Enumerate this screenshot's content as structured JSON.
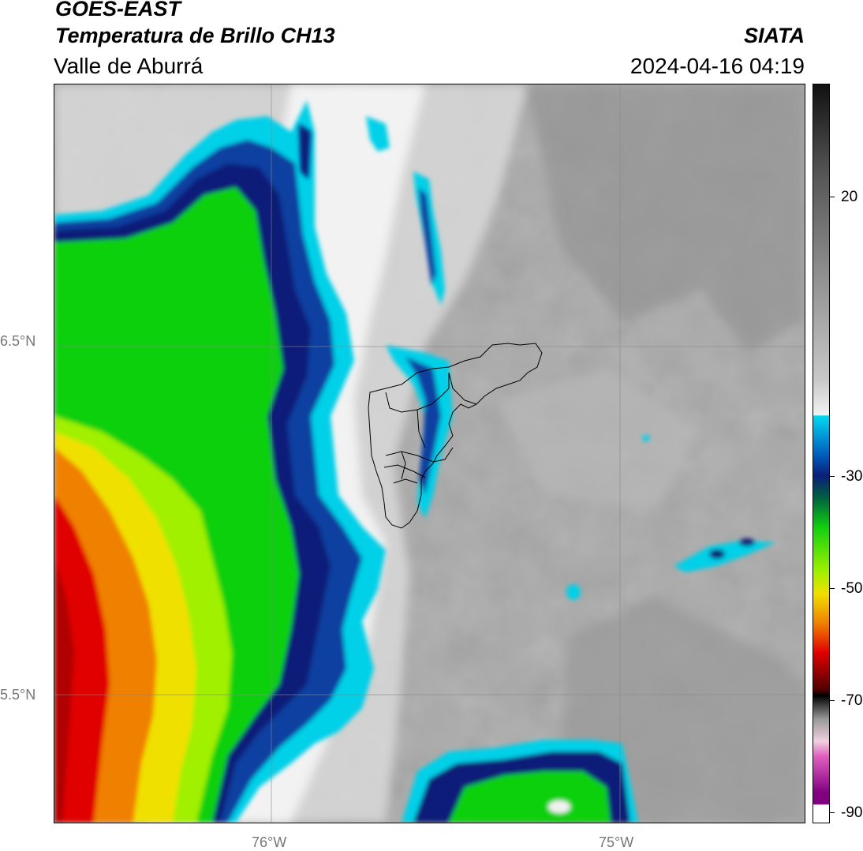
{
  "header": {
    "satellite": "GOES-EAST",
    "product": "Temperatura de Brillo CH13",
    "region": "Valle de Aburrá",
    "organization": "SIATA",
    "datetime": "2024-04-16 04:19"
  },
  "map": {
    "lat_labels": [
      "6.5°N",
      "5.5°N"
    ],
    "lon_labels": [
      "76°W",
      "75°W"
    ]
  },
  "colorbar": {
    "tick_labels": [
      "20",
      "-30",
      "-50",
      "-70",
      "-90"
    ],
    "colors": {
      "warm_gray_dark": "#8a8a8a",
      "warm_gray_light": "#f2f2f2",
      "cyan": "#00d0e8",
      "blue": "#0040a0",
      "navy": "#0a1f78",
      "green": "#10d010",
      "lime": "#a0f000",
      "yellow": "#f0e000",
      "orange": "#f08000",
      "red": "#e00000",
      "dark_red": "#500000",
      "magenta": "#d040c0",
      "purple": "#800080"
    }
  }
}
